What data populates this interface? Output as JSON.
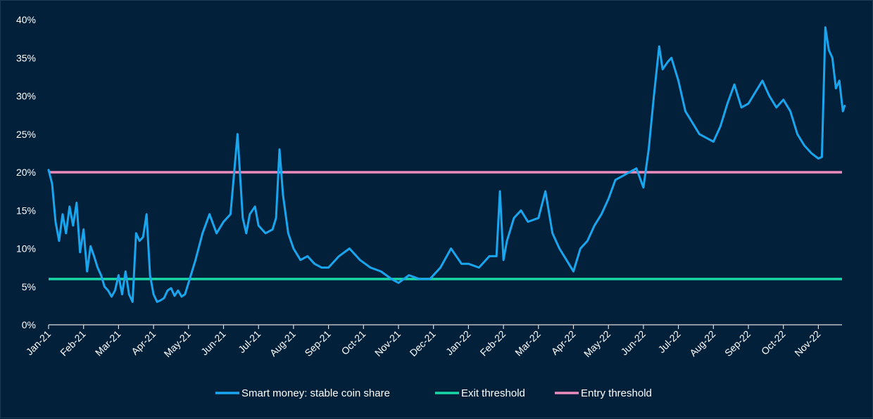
{
  "chart_data": {
    "type": "line",
    "title": "",
    "xlabel": "",
    "ylabel": "",
    "ylim": [
      0,
      40
    ],
    "yticks": [
      "0%",
      "5%",
      "10%",
      "15%",
      "20%",
      "25%",
      "30%",
      "35%",
      "40%"
    ],
    "xticks": [
      "Jan-21",
      "Feb-21",
      "Mar-21",
      "Apr-21",
      "May-21",
      "Jun-21",
      "Jul-21",
      "Aug-21",
      "Sep-21",
      "Oct-21",
      "Nov-21",
      "Dec-21",
      "Jan-22",
      "Feb-22",
      "Mar-22",
      "Apr-22",
      "May-22",
      "Jun-22",
      "Jul-22",
      "Aug-22",
      "Sep-22",
      "Oct-22",
      "Nov-22"
    ],
    "x_range_months": [
      0,
      22.75
    ],
    "grid": false,
    "legend_position": "bottom-center",
    "series": [
      {
        "name": "Smart money: stable coin share",
        "color": "#1aa6ef",
        "x_months": [
          0,
          0.1,
          0.2,
          0.3,
          0.4,
          0.5,
          0.6,
          0.7,
          0.8,
          0.9,
          1.0,
          1.1,
          1.2,
          1.3,
          1.4,
          1.5,
          1.6,
          1.7,
          1.8,
          1.9,
          2.0,
          2.1,
          2.2,
          2.3,
          2.4,
          2.5,
          2.6,
          2.7,
          2.8,
          2.9,
          3.0,
          3.1,
          3.2,
          3.3,
          3.4,
          3.5,
          3.6,
          3.7,
          3.8,
          3.9,
          4.0,
          4.2,
          4.4,
          4.6,
          4.8,
          5.0,
          5.2,
          5.4,
          5.55,
          5.65,
          5.75,
          5.9,
          6.0,
          6.2,
          6.4,
          6.5,
          6.6,
          6.7,
          6.85,
          7.0,
          7.2,
          7.4,
          7.6,
          7.8,
          8.0,
          8.3,
          8.6,
          8.9,
          9.2,
          9.5,
          9.8,
          10.0,
          10.3,
          10.6,
          10.9,
          11.2,
          11.5,
          11.8,
          12.0,
          12.3,
          12.6,
          12.8,
          12.9,
          13.0,
          13.1,
          13.3,
          13.5,
          13.7,
          14.0,
          14.2,
          14.4,
          14.6,
          14.8,
          15.0,
          15.2,
          15.4,
          15.6,
          15.8,
          16.0,
          16.2,
          16.4,
          16.6,
          16.8,
          17.0,
          17.15,
          17.3,
          17.45,
          17.55,
          17.7,
          17.8,
          18.0,
          18.2,
          18.4,
          18.6,
          18.8,
          19.0,
          19.2,
          19.4,
          19.6,
          19.8,
          20.0,
          20.2,
          20.4,
          20.6,
          20.8,
          21.0,
          21.2,
          21.4,
          21.6,
          21.8,
          22.0,
          22.1,
          22.2,
          22.3,
          22.4,
          22.5,
          22.6,
          22.7,
          22.75
        ],
        "values": [
          20.3,
          18.5,
          13.5,
          11.0,
          14.5,
          12.0,
          15.5,
          13.0,
          16.0,
          9.5,
          12.5,
          7.0,
          10.3,
          9.0,
          7.5,
          6.5,
          5.0,
          4.5,
          3.7,
          4.5,
          6.5,
          4.0,
          7.0,
          4.0,
          3.0,
          12.0,
          11.0,
          11.5,
          14.5,
          6.5,
          4.0,
          3.0,
          3.2,
          3.5,
          4.5,
          4.8,
          3.8,
          4.5,
          3.7,
          4.0,
          5.5,
          8.5,
          12.0,
          14.5,
          12.0,
          13.5,
          14.5,
          25.0,
          14.0,
          12.0,
          14.5,
          15.5,
          13.0,
          12.0,
          12.5,
          14.0,
          23.0,
          17.0,
          12.0,
          10.0,
          8.5,
          9.0,
          8.0,
          7.5,
          7.5,
          9.0,
          10.0,
          8.5,
          7.5,
          7.0,
          6.0,
          5.5,
          6.5,
          6.0,
          6.0,
          7.5,
          10.0,
          8.0,
          8.0,
          7.5,
          9.0,
          9.0,
          17.5,
          8.5,
          11.0,
          14.0,
          15.0,
          13.5,
          14.0,
          17.5,
          12.0,
          10.0,
          8.5,
          7.0,
          10.0,
          11.0,
          13.0,
          14.5,
          16.5,
          19.0,
          19.5,
          20.0,
          20.5,
          18.0,
          23.0,
          30.0,
          36.5,
          33.5,
          34.5,
          35.0,
          32.0,
          28.0,
          26.5,
          25.0,
          24.5,
          24.0,
          26.0,
          29.0,
          31.5,
          28.5,
          29.0,
          30.5,
          32.0,
          30.0,
          28.5,
          29.5,
          28.0,
          25.0,
          23.5,
          22.5,
          21.8,
          22.0,
          39.0,
          36.0,
          35.0,
          31.0,
          32.0,
          28.0,
          28.7
        ]
      },
      {
        "name": "Exit threshold",
        "color": "#19d6a6",
        "constant": 6
      },
      {
        "name": "Entry threshold",
        "color": "#ec8cbe",
        "constant": 20
      }
    ]
  }
}
